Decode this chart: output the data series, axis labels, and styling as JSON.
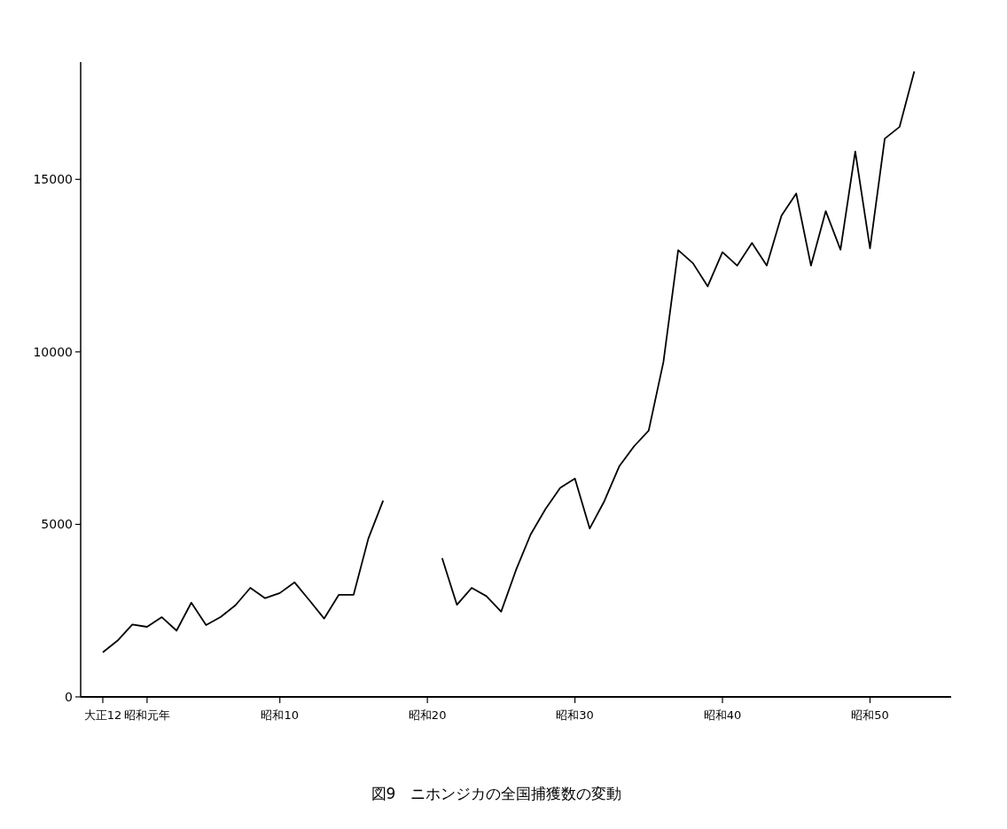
{
  "chart_data": {
    "type": "line",
    "title": "図9　ニホンジカの全国捕獲数の変動",
    "categories": [
      null,
      "大正12",
      null,
      null,
      "昭和元年",
      null,
      null,
      null,
      null,
      null,
      null,
      null,
      null,
      "昭和10",
      null,
      null,
      null,
      null,
      null,
      null,
      null,
      null,
      null,
      "昭和20",
      null,
      null,
      null,
      null,
      null,
      null,
      null,
      null,
      null,
      "昭和30",
      null,
      null,
      null,
      null,
      null,
      null,
      null,
      null,
      null,
      "昭和40",
      null,
      null,
      null,
      null,
      null,
      null,
      null,
      null,
      null,
      "昭和50",
      null,
      null,
      null,
      null,
      null
    ],
    "series": [
      {
        "color": "#000000",
        "values": [
          null,
          1290,
          1630,
          2100,
          2030,
          2310,
          1920,
          2730,
          2080,
          2320,
          2660,
          3160,
          2860,
          3010,
          3320,
          2800,
          2270,
          2960,
          2960,
          4590,
          5690,
          null,
          null,
          null,
          4020,
          2670,
          3160,
          2920,
          2470,
          3670,
          4710,
          5440,
          6060,
          6330,
          4880,
          5680,
          6680,
          7260,
          7720,
          9710,
          12950,
          12570,
          11900,
          12890,
          12500,
          13160,
          12500,
          13950,
          14590,
          12500,
          14080,
          12960,
          15810,
          13000,
          16180,
          16520,
          18130,
          null,
          null
        ]
      }
    ],
    "ylim": [
      0,
      18400
    ],
    "yticks": [
      0,
      5000,
      10000,
      15000
    ],
    "grid": false,
    "marker": "none",
    "line_style": "solid"
  }
}
